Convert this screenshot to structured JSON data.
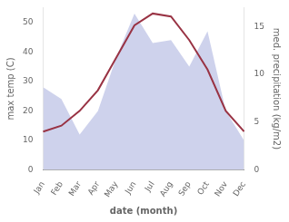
{
  "chart_data": {
    "type": "line",
    "categories": [
      "Jan",
      "Feb",
      "Mar",
      "Apr",
      "May",
      "Jun",
      "Jul",
      "Aug",
      "Sep",
      "Oct",
      "Nov",
      "Dec"
    ],
    "series": [
      {
        "type": "area",
        "color": "#c5cae9",
        "values": [
          28,
          24,
          12,
          20,
          38,
          53,
          43,
          44,
          35,
          47,
          20,
          10
        ]
      },
      {
        "type": "line",
        "color": "#993344",
        "values": [
          13,
          15,
          20,
          27,
          38,
          49,
          53,
          52,
          44,
          34,
          20,
          13
        ]
      }
    ],
    "xlabel": "date (month)",
    "ylabel": "max temp (C)",
    "y2label": "med. precipitation (kg/m2)",
    "ylim": [
      0,
      55
    ],
    "yticks": [
      0,
      10,
      20,
      30,
      40,
      50
    ],
    "y2lim": [
      0,
      17
    ],
    "y2ticks": [
      0,
      5,
      10,
      15
    ],
    "grid": false
  }
}
